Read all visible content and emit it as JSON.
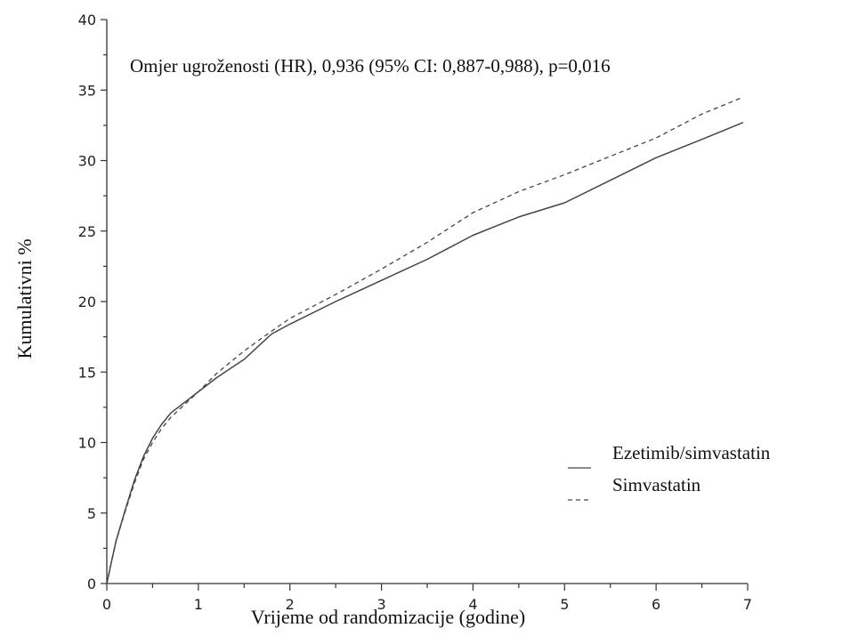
{
  "chart_data": {
    "type": "line",
    "title": "",
    "annotation": "Omjer ugroženosti (HR), 0,936 (95% CI: 0,887-0,988), p=0,016",
    "xlabel": "Vrijeme od randomizacije (godine)",
    "ylabel": "Kumulativni %",
    "xlim": [
      0,
      7
    ],
    "ylim": [
      0,
      40
    ],
    "xticks": [
      0,
      1,
      2,
      3,
      4,
      5,
      6,
      7
    ],
    "xtick_labels": [
      "0",
      "1",
      "2",
      "3",
      "4",
      "5",
      "6",
      "7"
    ],
    "yticks": [
      0,
      5,
      10,
      15,
      20,
      25,
      30,
      35,
      40
    ],
    "ytick_labels": [
      "0",
      "5",
      "10",
      "15",
      "20",
      "25",
      "30",
      "35",
      "40"
    ],
    "grid": false,
    "legend_position": "right",
    "series": [
      {
        "name": "Ezetimib/simvastatin",
        "line_style": "solid",
        "color": "#444444",
        "x": [
          0,
          0.05,
          0.1,
          0.2,
          0.3,
          0.4,
          0.5,
          0.6,
          0.7,
          0.8,
          1.0,
          1.2,
          1.5,
          1.8,
          2.0,
          2.5,
          3.0,
          3.5,
          4.0,
          4.5,
          5.0,
          5.5,
          6.0,
          6.5,
          6.95
        ],
        "values": [
          0,
          1.5,
          3.0,
          5.2,
          7.3,
          9.0,
          10.3,
          11.3,
          12.1,
          12.6,
          13.6,
          14.6,
          15.9,
          17.7,
          18.4,
          20.0,
          21.5,
          23.0,
          24.7,
          26.0,
          27.0,
          28.6,
          30.2,
          31.5,
          32.7
        ]
      },
      {
        "name": "Simvastatin",
        "line_style": "dashed",
        "color": "#444444",
        "x": [
          0,
          0.05,
          0.1,
          0.2,
          0.3,
          0.4,
          0.5,
          0.6,
          0.7,
          0.8,
          1.0,
          1.2,
          1.5,
          1.8,
          2.0,
          2.5,
          3.0,
          3.5,
          4.0,
          4.5,
          5.0,
          5.5,
          6.0,
          6.5,
          6.95
        ],
        "values": [
          0,
          1.5,
          3.0,
          5.1,
          7.1,
          8.8,
          10.0,
          11.0,
          11.8,
          12.4,
          13.6,
          14.9,
          16.5,
          17.9,
          18.8,
          20.5,
          22.3,
          24.2,
          26.3,
          27.8,
          29.0,
          30.3,
          31.6,
          33.3,
          34.5
        ]
      }
    ]
  }
}
